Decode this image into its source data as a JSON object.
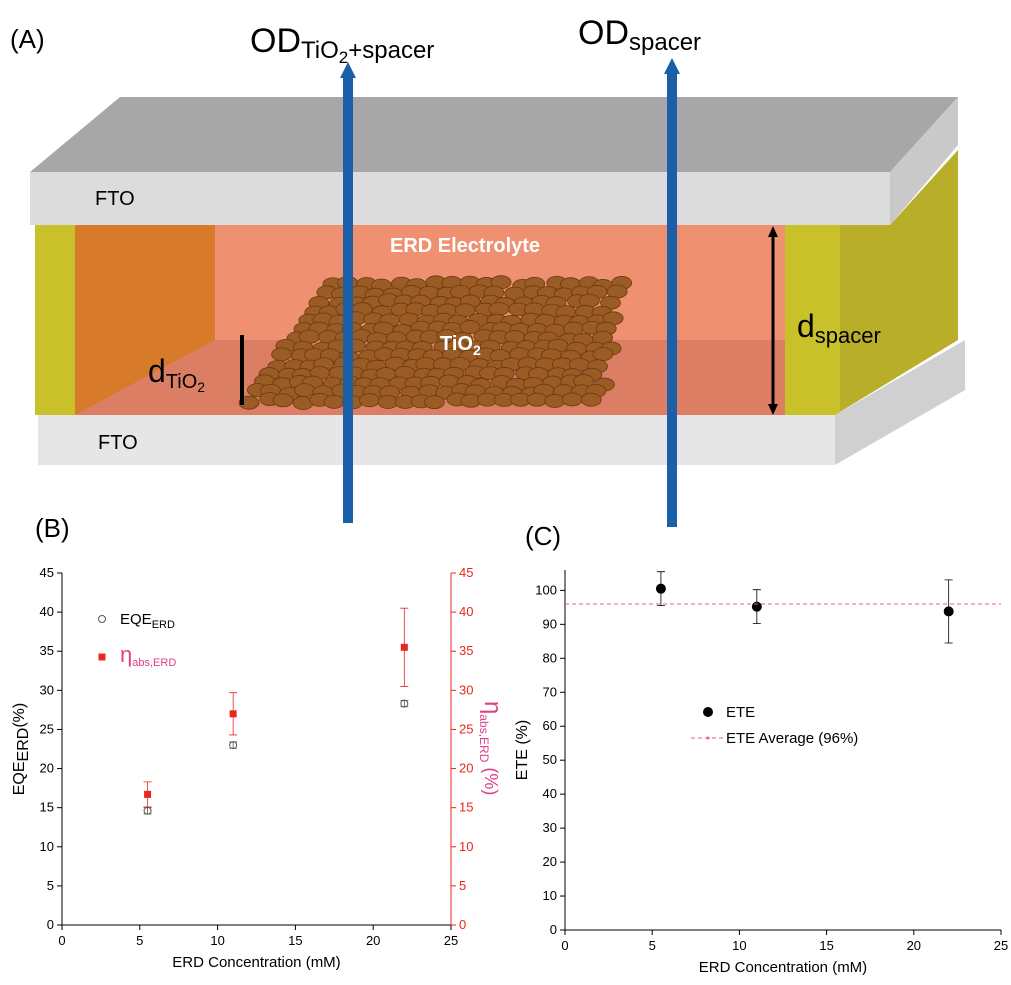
{
  "diagram": {
    "panel_label": "(A)",
    "od_left": [
      "OD",
      "TiO",
      "2",
      "+spacer"
    ],
    "od_right": [
      "OD",
      "spacer"
    ],
    "fto_top": "FTO",
    "fto_bottom": "FTO",
    "electrolyte": "ERD Electrolyte",
    "tio2": [
      "TiO",
      "2"
    ],
    "d_tio2": [
      "d",
      "TiO",
      "2"
    ],
    "d_spacer": [
      "d",
      "spacer"
    ]
  },
  "chart_data": [
    {
      "type": "scatter",
      "panel_label": "(B)",
      "xlabel": "ERD Concentration (mM)",
      "ylabel": [
        "EQE",
        "ERD",
        "(%)"
      ],
      "y2label": [
        "η",
        "abs,ERD",
        " (%)"
      ],
      "y2label_color": "#e0408a",
      "y2_color": "#e8281e",
      "xlim": [
        0,
        25
      ],
      "xticks": [
        0,
        5,
        10,
        15,
        20,
        25
      ],
      "ylim": [
        0,
        45
      ],
      "yticks": [
        0,
        5,
        10,
        15,
        20,
        25,
        30,
        35,
        40,
        45
      ],
      "y2lim": [
        0,
        45
      ],
      "y2ticks": [
        0,
        5,
        10,
        15,
        20,
        25,
        30,
        35,
        40,
        45
      ],
      "legend": "upper left",
      "x": [
        5.5,
        11,
        22
      ],
      "series": [
        {
          "name": "EQE",
          "name_sub": "ERD",
          "color": "#555555",
          "marker": "open-circle",
          "values": [
            14.6,
            23,
            28.3
          ],
          "errors": [
            0.4,
            0.4,
            0.4
          ]
        },
        {
          "name": "η",
          "name_sub": "abs,ERD",
          "name_color": "#e0408a",
          "color": "#e8281e",
          "marker": "square",
          "axis": "y2",
          "values": [
            16.7,
            27,
            35.5
          ],
          "errors": [
            1.6,
            2.7,
            5
          ]
        }
      ]
    },
    {
      "type": "scatter",
      "panel_label": "(C)",
      "xlabel": "ERD Concentration (mM)",
      "ylabel": [
        "ETE (%)"
      ],
      "xlim": [
        0,
        25
      ],
      "xticks": [
        0,
        5,
        10,
        15,
        20,
        25
      ],
      "ylim": [
        0,
        106
      ],
      "yticks": [
        0,
        10,
        20,
        30,
        40,
        50,
        60,
        70,
        80,
        90,
        100
      ],
      "legend": "upper center",
      "x": [
        5.5,
        11,
        22
      ],
      "series": [
        {
          "name": "ETE",
          "color": "#000000",
          "marker": "circle",
          "values": [
            100.5,
            95.2,
            93.8
          ],
          "errors": [
            5,
            5,
            9.3
          ]
        },
        {
          "name": "ETE Average (96%)",
          "color": "#e8607f",
          "marker": "hline",
          "value": 96
        }
      ]
    }
  ]
}
